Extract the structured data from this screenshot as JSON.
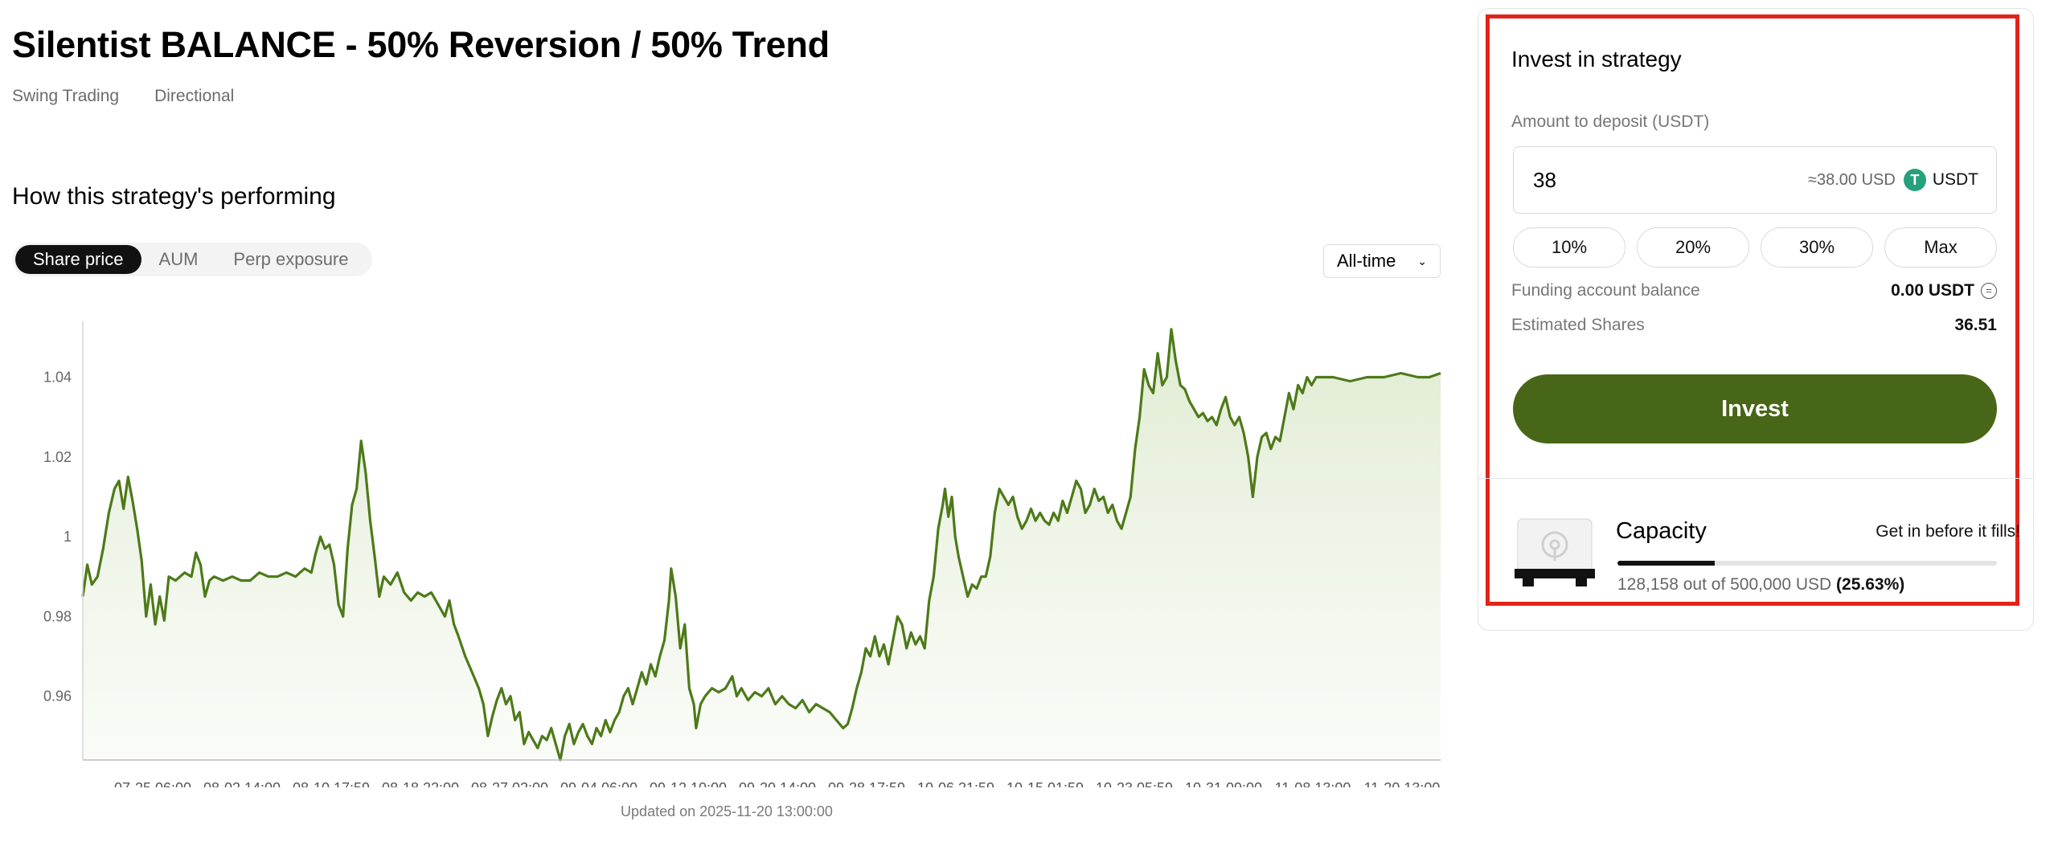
{
  "strategy": {
    "title": "Silentist BALANCE - 50% Reversion / 50% Trend",
    "tags": [
      "Swing Trading",
      "Directional"
    ]
  },
  "performance": {
    "section_title": "How this strategy's performing",
    "tabs": [
      {
        "label": "Share price",
        "active": true
      },
      {
        "label": "AUM",
        "active": false
      },
      {
        "label": "Perp exposure",
        "active": false
      }
    ],
    "range": "All-time",
    "updated": "Updated on 2025-11-20 13:00:00"
  },
  "chart_data": {
    "type": "area",
    "line_color": "#4d7a19",
    "fill_color": "#e4eed8",
    "ylim": [
      0.944,
      1.054
    ],
    "y_ticks": [
      0.96,
      0.98,
      1,
      1.02,
      1.04
    ],
    "y_tick_labels": [
      "0.96",
      "0.98",
      "1",
      "1.02",
      "1.04"
    ],
    "x_tick_labels": [
      "07-25 06:00",
      "08-02 14:00",
      "08-10 17:59",
      "08-18 22:00",
      "08-27 02:00",
      "09-04 06:00",
      "09-12 10:00",
      "09-20 14:00",
      "09-28 17:59",
      "10-06 21:59",
      "10-15 01:59",
      "10-23 05:59",
      "10-31 09:00",
      "11-08 13:00",
      "11-20 13:00"
    ],
    "x_range": [
      0,
      120
    ],
    "points": [
      [
        0,
        0.985
      ],
      [
        0.4,
        0.993
      ],
      [
        0.8,
        0.988
      ],
      [
        1.3,
        0.99
      ],
      [
        1.8,
        0.997
      ],
      [
        2.3,
        1.006
      ],
      [
        2.8,
        1.012
      ],
      [
        3.2,
        1.014
      ],
      [
        3.6,
        1.007
      ],
      [
        4.0,
        1.015
      ],
      [
        4.4,
        1.009
      ],
      [
        4.8,
        1.002
      ],
      [
        5.2,
        0.994
      ],
      [
        5.6,
        0.98
      ],
      [
        6.0,
        0.988
      ],
      [
        6.4,
        0.978
      ],
      [
        6.8,
        0.985
      ],
      [
        7.2,
        0.979
      ],
      [
        7.6,
        0.99
      ],
      [
        8.2,
        0.989
      ],
      [
        9.0,
        0.991
      ],
      [
        9.6,
        0.99
      ],
      [
        10.0,
        0.996
      ],
      [
        10.4,
        0.993
      ],
      [
        10.8,
        0.985
      ],
      [
        11.2,
        0.989
      ],
      [
        11.6,
        0.99
      ],
      [
        12.4,
        0.989
      ],
      [
        13.2,
        0.99
      ],
      [
        14.0,
        0.989
      ],
      [
        14.8,
        0.989
      ],
      [
        15.6,
        0.991
      ],
      [
        16.4,
        0.99
      ],
      [
        17.2,
        0.99
      ],
      [
        18.0,
        0.991
      ],
      [
        18.8,
        0.99
      ],
      [
        19.6,
        0.992
      ],
      [
        20.2,
        0.991
      ],
      [
        20.6,
        0.996
      ],
      [
        21.0,
        1.0
      ],
      [
        21.4,
        0.997
      ],
      [
        21.8,
        0.998
      ],
      [
        22.2,
        0.993
      ],
      [
        22.6,
        0.983
      ],
      [
        23.0,
        0.98
      ],
      [
        23.4,
        0.997
      ],
      [
        23.8,
        1.008
      ],
      [
        24.2,
        1.012
      ],
      [
        24.6,
        1.024
      ],
      [
        25.0,
        1.016
      ],
      [
        25.4,
        1.004
      ],
      [
        25.8,
        0.995
      ],
      [
        26.2,
        0.985
      ],
      [
        26.6,
        0.99
      ],
      [
        27.2,
        0.988
      ],
      [
        27.8,
        0.991
      ],
      [
        28.4,
        0.986
      ],
      [
        29.0,
        0.984
      ],
      [
        29.6,
        0.986
      ],
      [
        30.2,
        0.985
      ],
      [
        30.8,
        0.986
      ],
      [
        31.4,
        0.983
      ],
      [
        32.0,
        0.98
      ],
      [
        32.4,
        0.984
      ],
      [
        32.8,
        0.978
      ],
      [
        33.2,
        0.975
      ],
      [
        33.8,
        0.97
      ],
      [
        34.4,
        0.966
      ],
      [
        35.0,
        0.962
      ],
      [
        35.4,
        0.958
      ],
      [
        35.8,
        0.95
      ],
      [
        36.2,
        0.955
      ],
      [
        36.6,
        0.959
      ],
      [
        37.0,
        0.962
      ],
      [
        37.4,
        0.958
      ],
      [
        37.8,
        0.96
      ],
      [
        38.2,
        0.954
      ],
      [
        38.6,
        0.956
      ],
      [
        39.0,
        0.948
      ],
      [
        39.4,
        0.951
      ],
      [
        39.8,
        0.949
      ],
      [
        40.2,
        0.947
      ],
      [
        40.6,
        0.95
      ],
      [
        41.0,
        0.949
      ],
      [
        41.4,
        0.952
      ],
      [
        41.8,
        0.948
      ],
      [
        42.2,
        0.944
      ],
      [
        42.6,
        0.95
      ],
      [
        43.0,
        0.953
      ],
      [
        43.4,
        0.948
      ],
      [
        43.8,
        0.951
      ],
      [
        44.2,
        0.953
      ],
      [
        44.6,
        0.95
      ],
      [
        45.0,
        0.948
      ],
      [
        45.4,
        0.952
      ],
      [
        45.8,
        0.95
      ],
      [
        46.2,
        0.954
      ],
      [
        46.6,
        0.951
      ],
      [
        47.0,
        0.954
      ],
      [
        47.4,
        0.956
      ],
      [
        47.8,
        0.96
      ],
      [
        48.2,
        0.962
      ],
      [
        48.6,
        0.958
      ],
      [
        49.0,
        0.962
      ],
      [
        49.4,
        0.966
      ],
      [
        49.8,
        0.963
      ],
      [
        50.2,
        0.968
      ],
      [
        50.6,
        0.965
      ],
      [
        51.0,
        0.97
      ],
      [
        51.4,
        0.974
      ],
      [
        51.8,
        0.984
      ],
      [
        52.0,
        0.992
      ],
      [
        52.4,
        0.985
      ],
      [
        52.8,
        0.972
      ],
      [
        53.2,
        0.978
      ],
      [
        53.6,
        0.962
      ],
      [
        54.0,
        0.958
      ],
      [
        54.2,
        0.952
      ],
      [
        54.6,
        0.958
      ],
      [
        55.0,
        0.96
      ],
      [
        55.6,
        0.962
      ],
      [
        56.2,
        0.961
      ],
      [
        56.8,
        0.962
      ],
      [
        57.4,
        0.965
      ],
      [
        57.8,
        0.96
      ],
      [
        58.2,
        0.962
      ],
      [
        58.8,
        0.959
      ],
      [
        59.4,
        0.961
      ],
      [
        60.0,
        0.96
      ],
      [
        60.6,
        0.962
      ],
      [
        61.2,
        0.958
      ],
      [
        61.8,
        0.96
      ],
      [
        62.4,
        0.958
      ],
      [
        63.0,
        0.957
      ],
      [
        63.6,
        0.959
      ],
      [
        64.2,
        0.956
      ],
      [
        64.8,
        0.958
      ],
      [
        65.4,
        0.957
      ],
      [
        66.0,
        0.956
      ],
      [
        66.6,
        0.954
      ],
      [
        67.2,
        0.952
      ],
      [
        67.6,
        0.953
      ],
      [
        68.0,
        0.957
      ],
      [
        68.4,
        0.962
      ],
      [
        68.8,
        0.966
      ],
      [
        69.2,
        0.972
      ],
      [
        69.6,
        0.97
      ],
      [
        70.0,
        0.975
      ],
      [
        70.4,
        0.97
      ],
      [
        70.8,
        0.973
      ],
      [
        71.2,
        0.968
      ],
      [
        71.6,
        0.974
      ],
      [
        72.0,
        0.98
      ],
      [
        72.4,
        0.978
      ],
      [
        72.8,
        0.972
      ],
      [
        73.2,
        0.976
      ],
      [
        73.6,
        0.973
      ],
      [
        74.0,
        0.975
      ],
      [
        74.4,
        0.972
      ],
      [
        74.8,
        0.984
      ],
      [
        75.2,
        0.99
      ],
      [
        75.6,
        1.002
      ],
      [
        76.0,
        1.008
      ],
      [
        76.2,
        1.012
      ],
      [
        76.5,
        1.005
      ],
      [
        76.8,
        1.01
      ],
      [
        77.1,
        1.0
      ],
      [
        77.4,
        0.995
      ],
      [
        77.8,
        0.99
      ],
      [
        78.2,
        0.985
      ],
      [
        78.6,
        0.988
      ],
      [
        79.0,
        0.987
      ],
      [
        79.4,
        0.99
      ],
      [
        79.8,
        0.99
      ],
      [
        80.2,
        0.995
      ],
      [
        80.6,
        1.006
      ],
      [
        81.0,
        1.012
      ],
      [
        81.4,
        1.01
      ],
      [
        81.8,
        1.008
      ],
      [
        82.2,
        1.01
      ],
      [
        82.6,
        1.005
      ],
      [
        83.0,
        1.002
      ],
      [
        83.4,
        1.004
      ],
      [
        83.8,
        1.007
      ],
      [
        84.2,
        1.004
      ],
      [
        84.6,
        1.006
      ],
      [
        85.0,
        1.004
      ],
      [
        85.4,
        1.003
      ],
      [
        85.8,
        1.006
      ],
      [
        86.2,
        1.004
      ],
      [
        86.6,
        1.009
      ],
      [
        87.0,
        1.006
      ],
      [
        87.4,
        1.01
      ],
      [
        87.8,
        1.014
      ],
      [
        88.2,
        1.012
      ],
      [
        88.6,
        1.006
      ],
      [
        89.0,
        1.008
      ],
      [
        89.4,
        1.012
      ],
      [
        89.8,
        1.009
      ],
      [
        90.2,
        1.01
      ],
      [
        90.6,
        1.006
      ],
      [
        91.0,
        1.008
      ],
      [
        91.4,
        1.004
      ],
      [
        91.8,
        1.002
      ],
      [
        92.2,
        1.006
      ],
      [
        92.6,
        1.01
      ],
      [
        93.0,
        1.022
      ],
      [
        93.4,
        1.03
      ],
      [
        93.8,
        1.042
      ],
      [
        94.2,
        1.038
      ],
      [
        94.6,
        1.036
      ],
      [
        95.0,
        1.046
      ],
      [
        95.4,
        1.038
      ],
      [
        95.8,
        1.04
      ],
      [
        96.0,
        1.046
      ],
      [
        96.2,
        1.052
      ],
      [
        96.6,
        1.044
      ],
      [
        97.0,
        1.038
      ],
      [
        97.4,
        1.037
      ],
      [
        97.8,
        1.034
      ],
      [
        98.2,
        1.032
      ],
      [
        98.6,
        1.03
      ],
      [
        99.0,
        1.031
      ],
      [
        99.4,
        1.029
      ],
      [
        99.8,
        1.03
      ],
      [
        100.2,
        1.028
      ],
      [
        100.6,
        1.032
      ],
      [
        101.0,
        1.035
      ],
      [
        101.4,
        1.03
      ],
      [
        101.8,
        1.028
      ],
      [
        102.2,
        1.03
      ],
      [
        102.6,
        1.026
      ],
      [
        103.0,
        1.02
      ],
      [
        103.4,
        1.01
      ],
      [
        103.8,
        1.02
      ],
      [
        104.2,
        1.025
      ],
      [
        104.6,
        1.026
      ],
      [
        105.0,
        1.022
      ],
      [
        105.4,
        1.025
      ],
      [
        105.8,
        1.024
      ],
      [
        106.2,
        1.03
      ],
      [
        106.6,
        1.036
      ],
      [
        107.0,
        1.032
      ],
      [
        107.4,
        1.038
      ],
      [
        107.8,
        1.036
      ],
      [
        108.2,
        1.04
      ],
      [
        108.6,
        1.038
      ],
      [
        109.0,
        1.04
      ],
      [
        110.5,
        1.04
      ],
      [
        112.0,
        1.039
      ],
      [
        113.5,
        1.04
      ],
      [
        115.0,
        1.04
      ],
      [
        116.5,
        1.041
      ],
      [
        118.0,
        1.04
      ],
      [
        119.0,
        1.04
      ],
      [
        120.0,
        1.041
      ]
    ]
  },
  "invest": {
    "title": "Invest in strategy",
    "amount_label": "Amount to deposit (USDT)",
    "amount_value": "38",
    "approx_value": "≈38.00 USD",
    "currency": "USDT",
    "tether_glyph": "T",
    "tether_color": "#27a17c",
    "percent_buttons": [
      "10%",
      "20%",
      "30%",
      "Max"
    ],
    "funding_label": "Funding account balance",
    "funding_value": "0.00 USDT",
    "shares_label": "Estimated Shares",
    "shares_value": "36.51",
    "invest_button": "Invest",
    "invest_color": "#486617"
  },
  "capacity": {
    "title": "Capacity",
    "hint": "Get in before it fills!",
    "used_text": "128,158 out of 500,000 USD",
    "percent_text": "(25.63%)",
    "fraction": 0.2563
  },
  "highlight_color": "#e2231a"
}
